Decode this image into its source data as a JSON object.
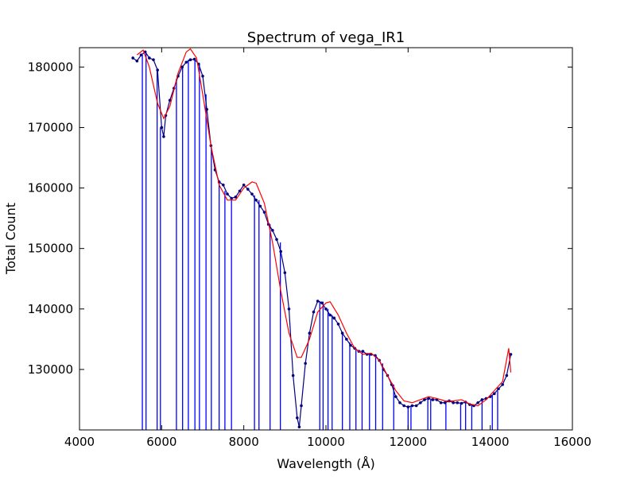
{
  "chart_data": {
    "type": "line",
    "title": "Spectrum of vega_IR1",
    "x_label": "Wavelength (Å)",
    "y_label": "Total Count",
    "xlim": [
      4000,
      16000
    ],
    "ylim": [
      120000,
      183200
    ],
    "xticks": [
      4000,
      6000,
      8000,
      10000,
      12000,
      14000,
      16000
    ],
    "yticks": [
      130000,
      140000,
      150000,
      160000,
      170000,
      180000
    ],
    "grid": false,
    "series": [
      {
        "style": "vlines",
        "color": "#0000ff",
        "x": [
          5530,
          5620,
          5890,
          5970,
          6360,
          6510,
          6650,
          6810,
          6920,
          7080,
          7210,
          7400,
          7540,
          7700,
          8260,
          8370,
          8640,
          8890,
          9850,
          9930,
          10050,
          10150,
          10400,
          10580,
          10730,
          10880,
          11060,
          11210,
          11380,
          11650,
          12000,
          12070,
          12480,
          12550,
          12920,
          13280,
          13400,
          13550,
          13800,
          14050,
          14180
        ],
        "values": [
          182000,
          182300,
          179800,
          170000,
          178000,
          180200,
          181200,
          181200,
          180500,
          175500,
          167000,
          161000,
          159500,
          158300,
          158800,
          158000,
          154000,
          151000,
          141300,
          141200,
          140000,
          139000,
          136000,
          134500,
          133500,
          133000,
          132500,
          132300,
          131000,
          127500,
          123800,
          124000,
          125100,
          125000,
          124500,
          124400,
          124600,
          124200,
          125000,
          125700,
          126500
        ]
      },
      {
        "style": "line-markers",
        "color": "#000080",
        "x": [
          5300,
          5400,
          5500,
          5600,
          5700,
          5800,
          5900,
          6000,
          6050,
          6100,
          6200,
          6300,
          6400,
          6500,
          6600,
          6700,
          6800,
          6900,
          7000,
          7100,
          7200,
          7300,
          7400,
          7500,
          7600,
          7700,
          7800,
          7900,
          8000,
          8100,
          8200,
          8300,
          8400,
          8500,
          8600,
          8700,
          8800,
          8900,
          9000,
          9100,
          9200,
          9300,
          9350,
          9400,
          9500,
          9600,
          9700,
          9800,
          9900,
          10000,
          10100,
          10200,
          10300,
          10400,
          10500,
          10600,
          10700,
          10800,
          10900,
          11000,
          11100,
          11200,
          11300,
          11400,
          11500,
          11600,
          11700,
          11800,
          11900,
          12000,
          12100,
          12200,
          12300,
          12400,
          12500,
          12600,
          12700,
          12800,
          12900,
          13000,
          13100,
          13200,
          13300,
          13400,
          13500,
          13600,
          13700,
          13800,
          13900,
          14000,
          14100,
          14200,
          14300,
          14400,
          14500
        ],
        "values": [
          181500,
          181000,
          182000,
          182500,
          181500,
          181200,
          179500,
          170000,
          168500,
          172000,
          174500,
          176500,
          178500,
          180000,
          180800,
          181200,
          181300,
          180500,
          178500,
          173000,
          167000,
          163000,
          161000,
          160500,
          159000,
          158300,
          158500,
          159500,
          160500,
          159800,
          159000,
          158000,
          157000,
          156000,
          154000,
          153000,
          151500,
          149500,
          146000,
          140000,
          129000,
          122000,
          120500,
          124000,
          131000,
          136000,
          139500,
          141300,
          141000,
          140000,
          139000,
          138500,
          137500,
          136000,
          135000,
          134000,
          133500,
          133000,
          133000,
          132500,
          132500,
          132300,
          131500,
          130000,
          129000,
          127500,
          125500,
          124500,
          124000,
          123800,
          124000,
          124000,
          124500,
          125000,
          125200,
          125000,
          125000,
          124500,
          124500,
          124800,
          124500,
          124500,
          124400,
          124600,
          124200,
          124000,
          124500,
          125000,
          125200,
          125500,
          126000,
          126800,
          127500,
          129000,
          132500
        ]
      },
      {
        "style": "line",
        "color": "#ff0000",
        "x": [
          5400,
          5550,
          5700,
          5900,
          6050,
          6200,
          6400,
          6600,
          6700,
          6850,
          7000,
          7200,
          7400,
          7600,
          7800,
          8000,
          8200,
          8300,
          8500,
          8700,
          8900,
          9100,
          9300,
          9400,
          9600,
          9800,
          10000,
          10100,
          10300,
          10500,
          10700,
          10900,
          11100,
          11300,
          11500,
          11700,
          11900,
          12100,
          12300,
          12500,
          12700,
          12900,
          13100,
          13300,
          13500,
          13700,
          13900,
          14100,
          14300,
          14450,
          14500
        ],
        "values": [
          182000,
          182800,
          180000,
          174000,
          171500,
          173500,
          179000,
          182500,
          183000,
          181500,
          175500,
          167000,
          160500,
          158000,
          158000,
          160000,
          161000,
          160800,
          157500,
          151000,
          143000,
          136000,
          132000,
          132000,
          135000,
          139500,
          141000,
          141200,
          139000,
          136000,
          133500,
          132500,
          132700,
          131500,
          129000,
          126500,
          124800,
          124500,
          125000,
          125500,
          125200,
          124800,
          124800,
          125000,
          124300,
          124000,
          125000,
          126500,
          128000,
          133500,
          129500
        ]
      }
    ]
  }
}
